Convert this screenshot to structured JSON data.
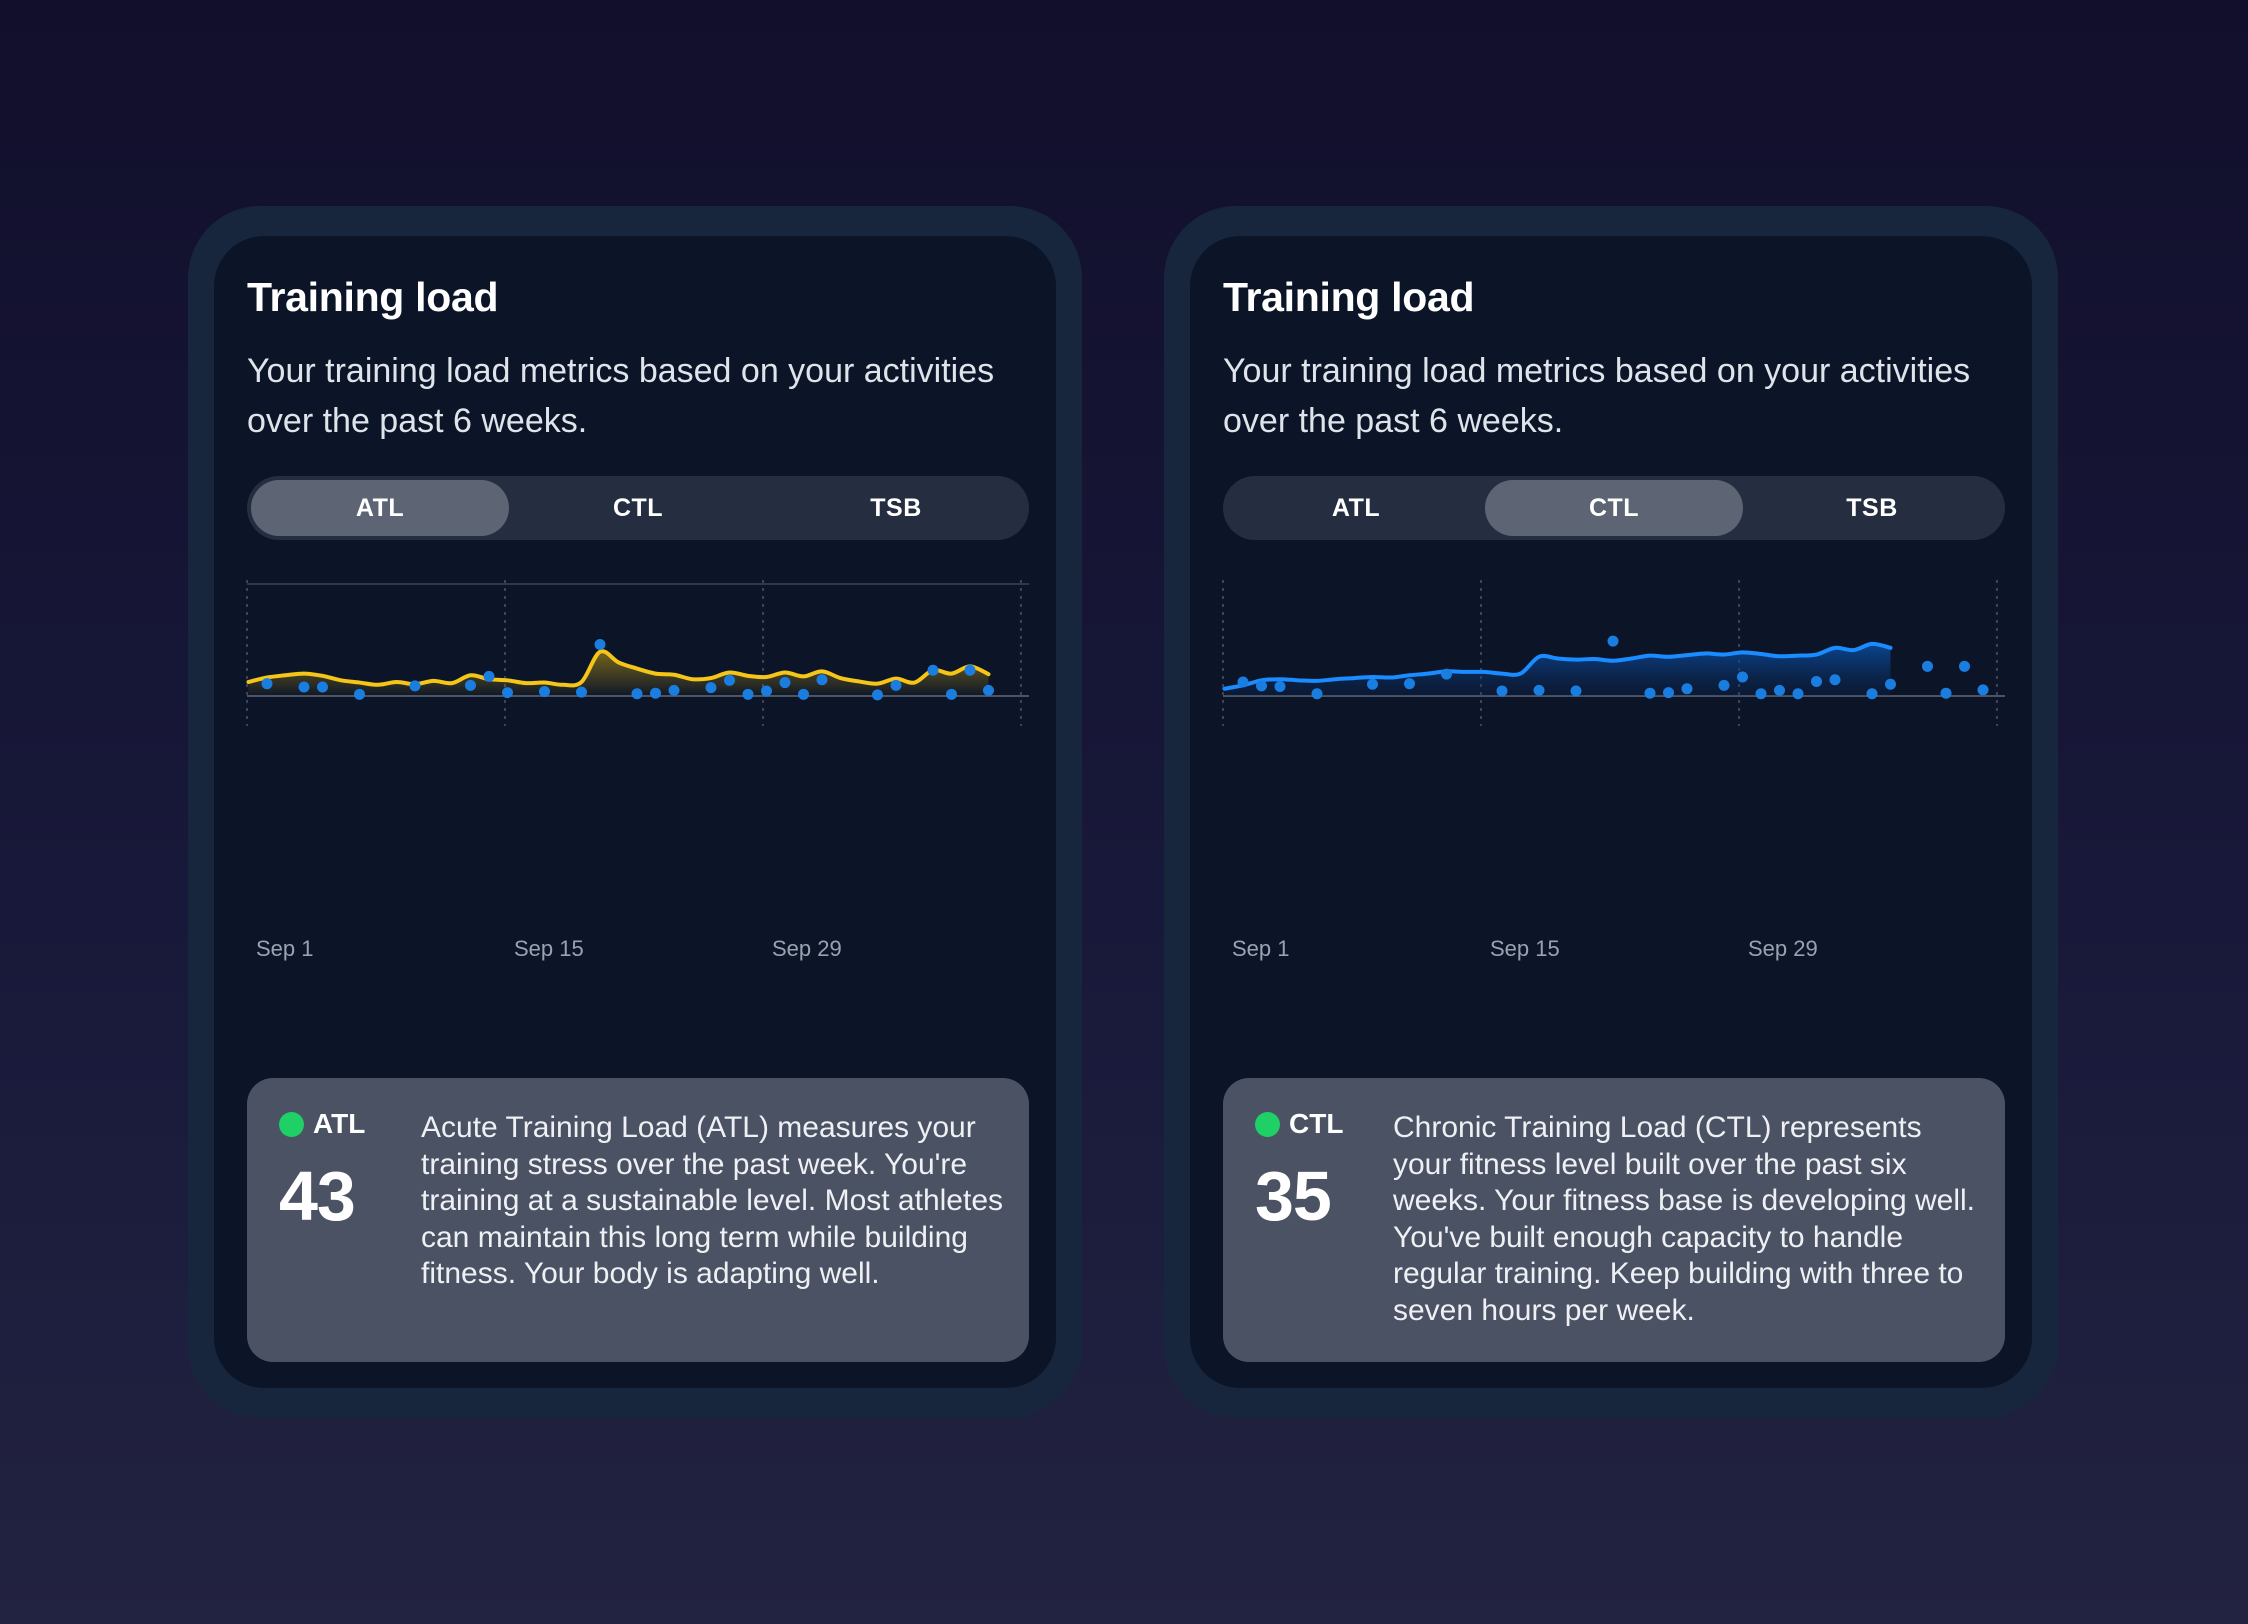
{
  "cards": [
    {
      "title": "Training load",
      "description": "Your training load metrics based on your activities over the past 6 weeks.",
      "tabs": [
        "ATL",
        "CTL",
        "TSB"
      ],
      "active_tab": 0,
      "metric": {
        "name": "ATL",
        "value": "43",
        "status_color": "#1fd066",
        "text": "Acute Training Load (ATL) measures your training stress over the past week. You're training at a sustainable level. Most athletes can maintain this long term while building fitness. Your body is adapting well."
      },
      "chart_data": {
        "type": "line",
        "x_tick_labels": [
          "Sep 1",
          "Sep 15",
          "Sep 29"
        ],
        "line_color": "#f5c518",
        "dot_color": "#1a7ee0",
        "fill": "area-gradient",
        "series": [
          {
            "values": [
              [
                1,
                25
              ],
              [
                2,
                33
              ],
              [
                3,
                37
              ],
              [
                4,
                40
              ],
              [
                5,
                36
              ],
              [
                6,
                28
              ],
              [
                7,
                24
              ],
              [
                8,
                20
              ],
              [
                9,
                25
              ],
              [
                10,
                21
              ],
              [
                11,
                27
              ],
              [
                12,
                23
              ],
              [
                13,
                37
              ],
              [
                14,
                30
              ],
              [
                15,
                28
              ],
              [
                16,
                23
              ],
              [
                17,
                24
              ],
              [
                18,
                20
              ],
              [
                19,
                25
              ],
              [
                20,
                79
              ],
              [
                21,
                60
              ],
              [
                22,
                49
              ],
              [
                23,
                40
              ],
              [
                24,
                38
              ],
              [
                25,
                30
              ],
              [
                26,
                32
              ],
              [
                27,
                42
              ],
              [
                28,
                36
              ],
              [
                29,
                34
              ],
              [
                30,
                42
              ],
              [
                31,
                35
              ],
              [
                32,
                44
              ],
              [
                33,
                32
              ],
              [
                34,
                26
              ],
              [
                35,
                22
              ],
              [
                36,
                31
              ],
              [
                37,
                24
              ],
              [
                38,
                46
              ],
              [
                39,
                40
              ],
              [
                40,
                53
              ],
              [
                41,
                39
              ]
            ]
          }
        ],
        "points": [
          [
            2,
            22
          ],
          [
            4,
            16
          ],
          [
            5,
            16
          ],
          [
            7,
            3
          ],
          [
            10,
            18
          ],
          [
            13,
            19
          ],
          [
            14,
            35
          ],
          [
            15,
            6
          ],
          [
            17,
            8
          ],
          [
            19,
            7
          ],
          [
            20,
            92
          ],
          [
            22,
            4
          ],
          [
            23,
            5
          ],
          [
            24,
            10
          ],
          [
            26,
            15
          ],
          [
            27,
            28
          ],
          [
            28,
            3
          ],
          [
            29,
            9
          ],
          [
            30,
            24
          ],
          [
            31,
            3
          ],
          [
            32,
            29
          ],
          [
            35,
            2
          ],
          [
            36,
            19
          ],
          [
            38,
            46
          ],
          [
            39,
            3
          ],
          [
            40,
            46
          ],
          [
            41,
            10
          ]
        ]
      }
    },
    {
      "title": "Training load",
      "description": "Your training load metrics based on your activities over the past 6 weeks.",
      "tabs": [
        "ATL",
        "CTL",
        "TSB"
      ],
      "active_tab": 1,
      "metric": {
        "name": "CTL",
        "value": "35",
        "status_color": "#1fd066",
        "text": "Chronic Training Load (CTL) represents your fitness level built over the past six weeks. Your fitness base is developing well. You've built enough capacity to handle regular training. Keep building with three to seven hours per week."
      },
      "chart_data": {
        "type": "area",
        "x_tick_labels": [
          "Sep 1",
          "Sep 15",
          "Sep 29"
        ],
        "line_color": "#1a8cff",
        "dot_color": "#1a7ee0",
        "fill": "area-gradient",
        "series": [
          {
            "values": [
              [
                1,
                13
              ],
              [
                2,
                19
              ],
              [
                3,
                28
              ],
              [
                4,
                30
              ],
              [
                5,
                28
              ],
              [
                6,
                27
              ],
              [
                7,
                30
              ],
              [
                8,
                32
              ],
              [
                9,
                34
              ],
              [
                10,
                33
              ],
              [
                11,
                37
              ],
              [
                12,
                40
              ],
              [
                13,
                44
              ],
              [
                14,
                43
              ],
              [
                15,
                43
              ],
              [
                16,
                40
              ],
              [
                17,
                40
              ],
              [
                18,
                70
              ],
              [
                19,
                67
              ],
              [
                20,
                65
              ],
              [
                21,
                66
              ],
              [
                22,
                63
              ],
              [
                23,
                67
              ],
              [
                24,
                72
              ],
              [
                25,
                70
              ],
              [
                26,
                73
              ],
              [
                27,
                76
              ],
              [
                28,
                74
              ],
              [
                29,
                78
              ],
              [
                30,
                75
              ],
              [
                31,
                71
              ],
              [
                32,
                72
              ],
              [
                33,
                74
              ],
              [
                34,
                86
              ],
              [
                35,
                82
              ],
              [
                36,
                93
              ],
              [
                37,
                86
              ]
            ]
          }
        ],
        "points": [
          [
            2,
            25
          ],
          [
            3,
            18
          ],
          [
            4,
            17
          ],
          [
            6,
            4
          ],
          [
            9,
            21
          ],
          [
            11,
            22
          ],
          [
            13,
            39
          ],
          [
            16,
            9
          ],
          [
            18,
            10
          ],
          [
            20,
            9
          ],
          [
            22,
            98
          ],
          [
            24,
            5
          ],
          [
            25,
            6
          ],
          [
            26,
            13
          ],
          [
            28,
            19
          ],
          [
            29,
            34
          ],
          [
            30,
            4
          ],
          [
            31,
            10
          ],
          [
            32,
            4
          ],
          [
            33,
            26
          ],
          [
            34,
            29
          ],
          [
            36,
            4
          ],
          [
            37,
            21
          ],
          [
            39,
            53
          ],
          [
            40,
            5
          ],
          [
            41,
            53
          ],
          [
            42,
            11
          ]
        ]
      }
    }
  ]
}
